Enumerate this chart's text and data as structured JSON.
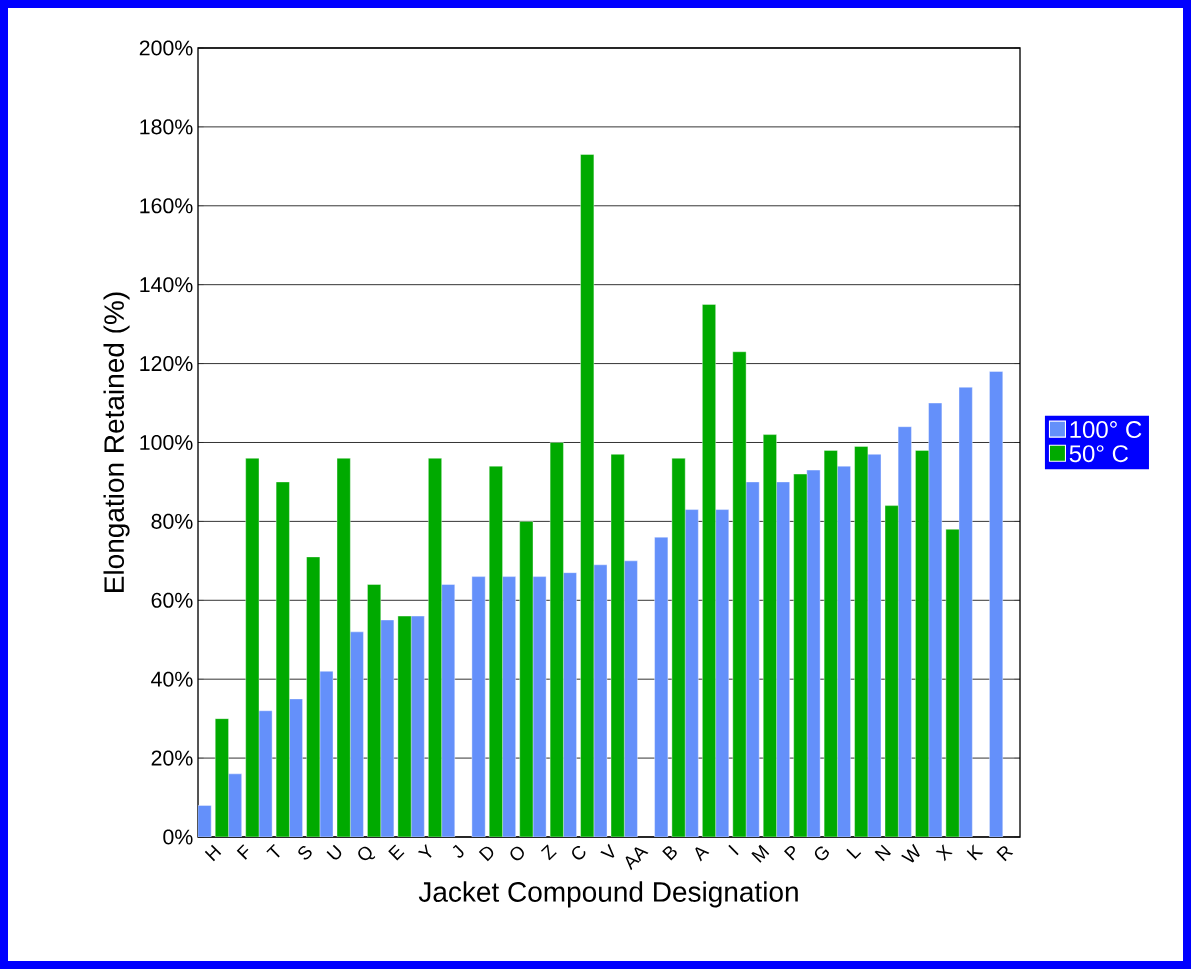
{
  "chart_data": {
    "type": "bar",
    "xlabel": "Jacket Compound Designation",
    "ylabel": "Elongation Retained (%)",
    "categories": [
      "H",
      "F",
      "T",
      "S",
      "U",
      "Q",
      "E",
      "Y",
      "J",
      "D",
      "O",
      "Z",
      "C",
      "V",
      "AA",
      "B",
      "A",
      "I",
      "M",
      "P",
      "G",
      "L",
      "N",
      "W",
      "X",
      "K",
      "R"
    ],
    "series": [
      {
        "name": "100° C",
        "color": "#6490fa",
        "values": [
          8,
          16,
          32,
          35,
          42,
          52,
          55,
          56,
          64,
          66,
          66,
          66,
          67,
          69,
          70,
          76,
          83,
          83,
          90,
          90,
          93,
          94,
          97,
          104,
          110,
          114,
          118
        ]
      },
      {
        "name": "50° C",
        "color": "#00aa00",
        "values": [
          30,
          96,
          90,
          71,
          96,
          64,
          56,
          96,
          null,
          94,
          80,
          100,
          173,
          97,
          null,
          96,
          135,
          123,
          102,
          92,
          98,
          99,
          84,
          98,
          78,
          null,
          null
        ]
      }
    ],
    "ylim": [
      0,
      200
    ],
    "yticks": [
      {
        "value": 0,
        "label": "0%"
      },
      {
        "value": 20,
        "label": "20%"
      },
      {
        "value": 40,
        "label": "40%"
      },
      {
        "value": 60,
        "label": "60%"
      },
      {
        "value": 80,
        "label": "80%"
      },
      {
        "value": 100,
        "label": "100%"
      },
      {
        "value": 120,
        "label": "120%"
      },
      {
        "value": 140,
        "label": "140%"
      },
      {
        "value": 160,
        "label": "160%"
      },
      {
        "value": 180,
        "label": "180%"
      },
      {
        "value": 200,
        "label": "200%"
      }
    ],
    "grid": "y",
    "legend": "right"
  }
}
